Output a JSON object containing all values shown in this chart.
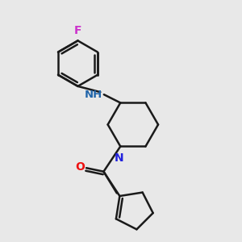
{
  "background_color": "#e8e8e8",
  "bond_color": "#1a1a1a",
  "N_color": "#2222dd",
  "O_color": "#ee1111",
  "F_color": "#cc33cc",
  "NH_color": "#2266aa",
  "line_width": 1.8,
  "figsize": [
    3.0,
    3.0
  ],
  "dpi": 100,
  "xlim": [
    0,
    10
  ],
  "ylim": [
    0,
    10
  ]
}
